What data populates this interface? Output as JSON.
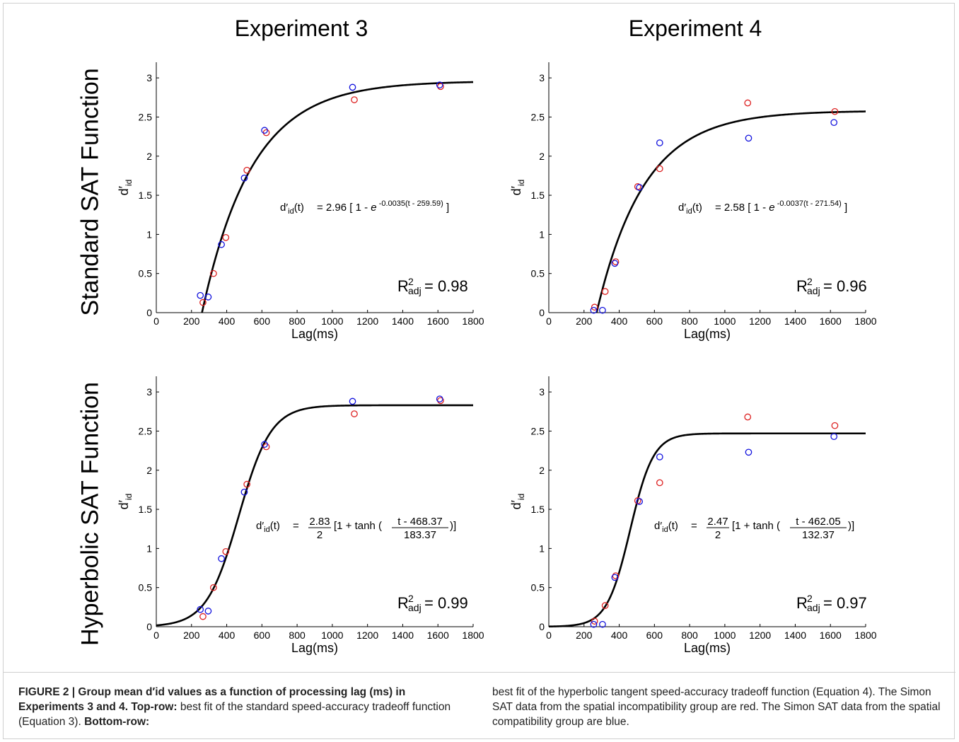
{
  "column_titles": [
    "Experiment 3",
    "Experiment 4"
  ],
  "row_titles": [
    "Standard SAT Function",
    "Hyperbolic SAT Function"
  ],
  "caption": {
    "label": "FIGURE 2 | Group mean d′id values as a function of processing lag (ms) in Experiments 3 and 4.",
    "top_row_label": "Top-row:",
    "top_row_text": "best fit of the standard speed-accuracy tradeoff function (Equation 3).",
    "bottom_row_label": "Bottom-row:",
    "bottom_row_text": "best fit of the hyperbolic tangent speed-accuracy tradeoff function (Equation 4). The Simon SAT data from the spatial incompatibility group are red. The Simon SAT data from the spatial compatibility group are blue."
  },
  "colors": {
    "red_group": "#dd2020",
    "blue_group": "#1010dd",
    "fit": "#000000"
  },
  "chart_data": [
    {
      "type": "scatter",
      "panel": "Experiment 3 / Standard SAT Function",
      "xlabel": "Lag(ms)",
      "ylabel": "d′id",
      "xlim": [
        0,
        1800
      ],
      "ylim": [
        0,
        3.2
      ],
      "xticks": [
        0,
        200,
        400,
        600,
        800,
        1000,
        1200,
        1400,
        1600,
        1800
      ],
      "yticks": [
        0,
        0.5,
        1,
        1.5,
        2,
        2.5,
        3
      ],
      "series": [
        {
          "color": "red",
          "x": [
            265,
            325,
            395,
            515,
            625,
            1125,
            1615
          ],
          "y": [
            0.13,
            0.5,
            0.96,
            1.82,
            2.3,
            2.72,
            2.89
          ]
        },
        {
          "color": "blue",
          "x": [
            250,
            295,
            370,
            500,
            615,
            1115,
            1610
          ],
          "y": [
            0.22,
            0.2,
            0.87,
            1.72,
            2.33,
            2.88,
            2.91
          ]
        }
      ],
      "fit": {
        "model": "standard",
        "lambda": 2.96,
        "beta": 0.0035,
        "delta": 259.59
      },
      "equation": {
        "lhs": "d′id(t)",
        "text": "= 2.96 [ 1 - e",
        "exponent": "-0.0035(t - 259.59)",
        "close": "]"
      },
      "r2": {
        "label": "R",
        "sup": "2",
        "sub": "adj",
        "value": "= 0.98"
      }
    },
    {
      "type": "scatter",
      "panel": "Experiment 4 / Standard SAT Function",
      "xlabel": "Lag(ms)",
      "ylabel": "d′id",
      "xlim": [
        0,
        1800
      ],
      "ylim": [
        0,
        3.2
      ],
      "xticks": [
        0,
        200,
        400,
        600,
        800,
        1000,
        1200,
        1400,
        1600,
        1800
      ],
      "yticks": [
        0,
        0.5,
        1,
        1.5,
        2,
        2.5,
        3
      ],
      "series": [
        {
          "color": "red",
          "x": [
            260,
            320,
            380,
            505,
            630,
            1130,
            1625
          ],
          "y": [
            0.07,
            0.27,
            0.65,
            1.61,
            1.84,
            2.68,
            2.57
          ]
        },
        {
          "color": "blue",
          "x": [
            255,
            305,
            375,
            515,
            630,
            1135,
            1620
          ],
          "y": [
            0.03,
            0.03,
            0.63,
            1.6,
            2.17,
            2.23,
            2.43
          ]
        }
      ],
      "fit": {
        "model": "standard",
        "lambda": 2.58,
        "beta": 0.0037,
        "delta": 271.54
      },
      "equation": {
        "lhs": "d′id(t)",
        "text": "= 2.58 [ 1 - e",
        "exponent": "-0.0037(t - 271.54)",
        "close": "]"
      },
      "r2": {
        "label": "R",
        "sup": "2",
        "sub": "adj",
        "value": "= 0.96"
      }
    },
    {
      "type": "scatter",
      "panel": "Experiment 3 / Hyperbolic SAT Function",
      "xlabel": "Lag(ms)",
      "ylabel": "d′id",
      "xlim": [
        0,
        1800
      ],
      "ylim": [
        0,
        3.2
      ],
      "xticks": [
        0,
        200,
        400,
        600,
        800,
        1000,
        1200,
        1400,
        1600,
        1800
      ],
      "yticks": [
        0,
        0.5,
        1,
        1.5,
        2,
        2.5,
        3
      ],
      "series": [
        {
          "color": "red",
          "x": [
            265,
            325,
            395,
            515,
            625,
            1125,
            1615
          ],
          "y": [
            0.13,
            0.5,
            0.96,
            1.82,
            2.3,
            2.72,
            2.89
          ]
        },
        {
          "color": "blue",
          "x": [
            250,
            295,
            370,
            500,
            615,
            1115,
            1610
          ],
          "y": [
            0.22,
            0.2,
            0.87,
            1.72,
            2.33,
            2.88,
            2.91
          ]
        }
      ],
      "fit": {
        "model": "hyperbolic",
        "lambda": 2.83,
        "mu": 468.37,
        "sigma": 183.37
      },
      "equation": {
        "lhs": "d′id(t)",
        "eq": "=",
        "num": "2.83",
        "den": "2",
        "mid": "[1 + tanh (",
        "fnum": "t - 468.37",
        "fden": "183.37",
        "close": ")]"
      },
      "r2": {
        "label": "R",
        "sup": "2",
        "sub": "adj",
        "value": "= 0.99"
      }
    },
    {
      "type": "scatter",
      "panel": "Experiment 4 / Hyperbolic SAT Function",
      "xlabel": "Lag(ms)",
      "ylabel": "d′id",
      "xlim": [
        0,
        1800
      ],
      "ylim": [
        0,
        3.2
      ],
      "xticks": [
        0,
        200,
        400,
        600,
        800,
        1000,
        1200,
        1400,
        1600,
        1800
      ],
      "yticks": [
        0,
        0.5,
        1,
        1.5,
        2,
        2.5,
        3
      ],
      "series": [
        {
          "color": "red",
          "x": [
            260,
            320,
            380,
            505,
            630,
            1130,
            1625
          ],
          "y": [
            0.07,
            0.27,
            0.65,
            1.61,
            1.84,
            2.68,
            2.57
          ]
        },
        {
          "color": "blue",
          "x": [
            255,
            305,
            375,
            515,
            630,
            1135,
            1620
          ],
          "y": [
            0.03,
            0.03,
            0.63,
            1.6,
            2.17,
            2.23,
            2.43
          ]
        }
      ],
      "fit": {
        "model": "hyperbolic",
        "lambda": 2.47,
        "mu": 462.05,
        "sigma": 132.37
      },
      "equation": {
        "lhs": "d′id(t)",
        "eq": "=",
        "num": "2.47",
        "den": "2",
        "mid": "[1 + tanh (",
        "fnum": "t - 462.05",
        "fden": "132.37",
        "close": ")]"
      },
      "r2": {
        "label": "R",
        "sup": "2",
        "sub": "adj",
        "value": "= 0.97"
      }
    }
  ]
}
